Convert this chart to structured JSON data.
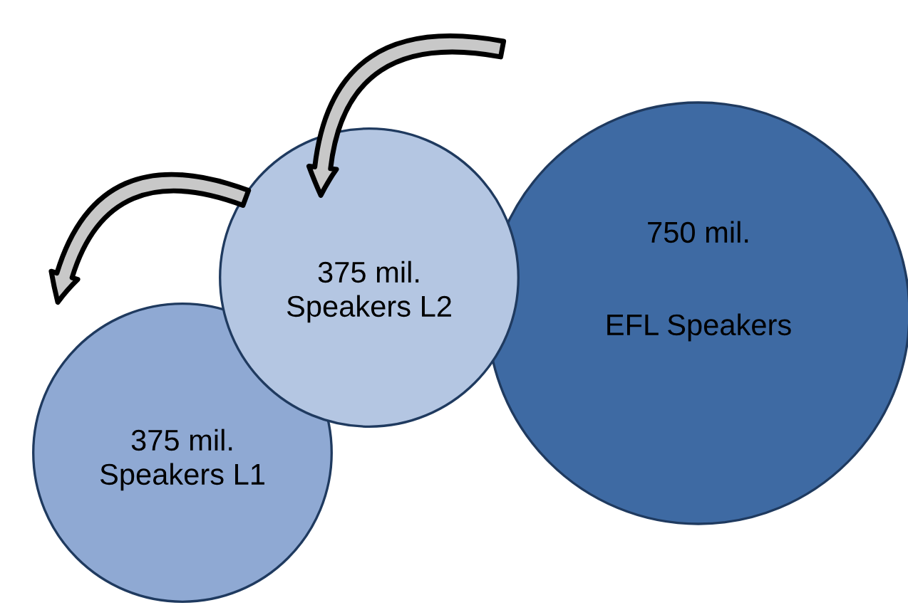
{
  "chart_data": {
    "type": "other",
    "categories": [
      "Speakers L1",
      "Speakers L2",
      "EFL Speakers"
    ],
    "values": [
      375,
      375,
      750
    ],
    "value_labels": [
      "375 mil.",
      "375 mil.",
      "750 mil."
    ],
    "colors": [
      "#8fa9d3",
      "#b4c6e2",
      "#3e6aa3"
    ]
  }
}
